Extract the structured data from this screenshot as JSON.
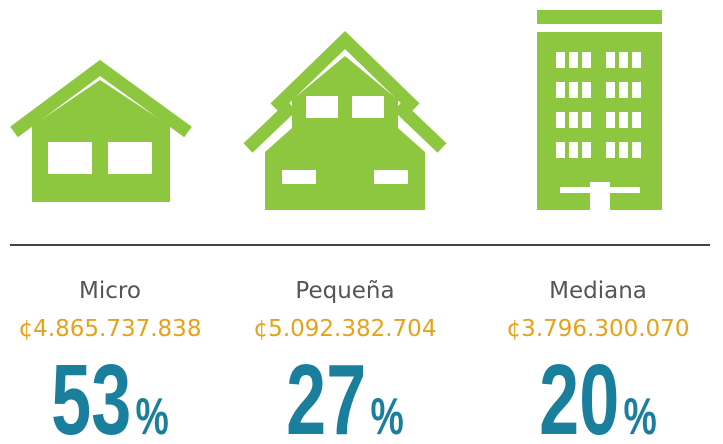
{
  "items": [
    {
      "label": "Micro",
      "amount": "¢4.865.737.838",
      "percent": 53,
      "unit": "%"
    },
    {
      "label": "Pequeña",
      "amount": "¢5.092.382.704",
      "percent": 27,
      "unit": "%"
    },
    {
      "label": "Mediana",
      "amount": "¢3.796.300.070",
      "percent": 20,
      "unit": "%"
    }
  ]
}
